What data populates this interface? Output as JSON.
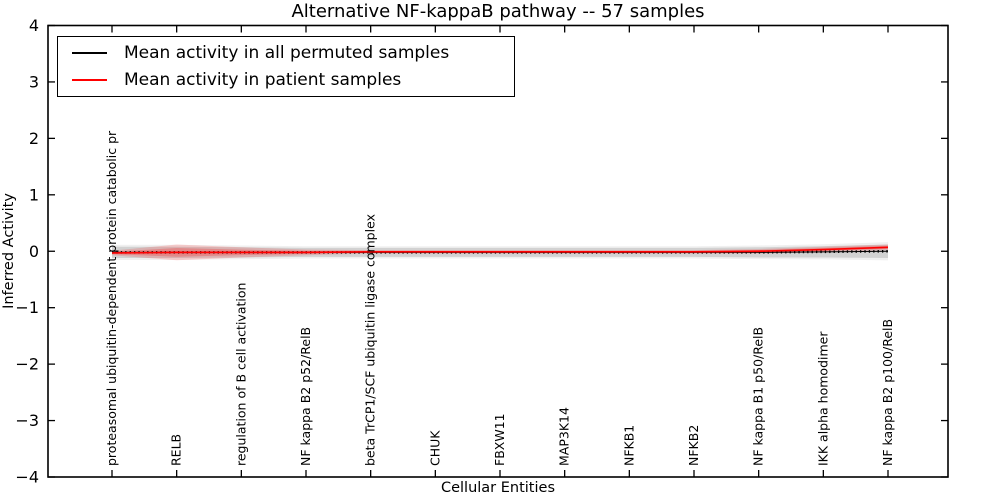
{
  "title": "Alternative NF-kappaB pathway -- 57 samples",
  "axes": {
    "xlabel": "Cellular Entities",
    "ylabel": "Inferred Activity"
  },
  "legend": {
    "items": [
      {
        "label": "Mean activity in all permuted samples",
        "color": "#000000"
      },
      {
        "label": "Mean activity in patient samples",
        "color": "#ff0000"
      }
    ]
  },
  "colors": {
    "permuted_line": "#000000",
    "patient_line": "#ff0000",
    "permuted_band": "rgba(0,0,0,0.12)",
    "patient_band": "rgba(255,0,0,0.16)",
    "frame": "#000000",
    "background": "#ffffff"
  },
  "chart_data": {
    "type": "line",
    "title": "Alternative NF-kappaB pathway -- 57 samples",
    "xlabel": "Cellular Entities",
    "ylabel": "Inferred Activity",
    "ylim": [
      -4,
      4
    ],
    "yticks": [
      -4,
      -3,
      -2,
      -1,
      0,
      1,
      2,
      3,
      4
    ],
    "grid": false,
    "legend_position": "upper left",
    "categories": [
      "proteasomal ubiquitin-dependent protein catabolic pr",
      "RELB",
      "regulation of B cell activation",
      "NF kappa B2 p52/RelB",
      "beta TrCP1/SCF ubiquitin ligase complex",
      "CHUK",
      "FBXW11",
      "MAP3K14",
      "NFKB1",
      "NFKB2",
      "NF kappa B1 p50/RelB",
      "IKK alpha homodimer",
      "NF kappa B2 p100/RelB"
    ],
    "series": [
      {
        "name": "Mean activity in all permuted samples",
        "color": "#000000",
        "line_style": "dotted",
        "values": [
          -0.02,
          -0.02,
          -0.02,
          -0.02,
          -0.02,
          -0.02,
          -0.02,
          -0.02,
          -0.02,
          -0.02,
          -0.02,
          -0.01,
          0.0
        ],
        "band_halfwidth": [
          0.1,
          0.1,
          0.09,
          0.08,
          0.08,
          0.08,
          0.08,
          0.08,
          0.08,
          0.08,
          0.09,
          0.1,
          0.12
        ]
      },
      {
        "name": "Mean activity in patient samples",
        "color": "#ff0000",
        "line_style": "solid",
        "values": [
          -0.03,
          -0.02,
          -0.02,
          -0.02,
          -0.01,
          -0.01,
          -0.01,
          -0.01,
          -0.01,
          -0.01,
          0.0,
          0.03,
          0.07
        ],
        "band_halfwidth": [
          0.04,
          0.14,
          0.09,
          0.05,
          0.03,
          0.03,
          0.03,
          0.03,
          0.03,
          0.03,
          0.04,
          0.05,
          0.05
        ]
      }
    ]
  }
}
